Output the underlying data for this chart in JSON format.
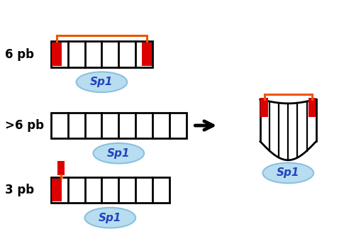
{
  "background_color": "#ffffff",
  "fig_width": 4.78,
  "fig_height": 3.54,
  "dpi": 100,
  "labels": {
    "6pb": "6 pb",
    "gt6pb": ">6 pb",
    "3pb": "3 pb"
  },
  "label_fontsize": 12,
  "sp1_fontsize": 11,
  "red_color": "#dd0000",
  "orange_color": "#ee5500",
  "black_color": "#000000",
  "blue_oval_color": "#b8ddf0",
  "blue_oval_edge": "#8ac0e0",
  "sp1_text_color": "#2244bb",
  "xlim": [
    0,
    10
  ],
  "ylim": [
    0,
    7.4
  ]
}
